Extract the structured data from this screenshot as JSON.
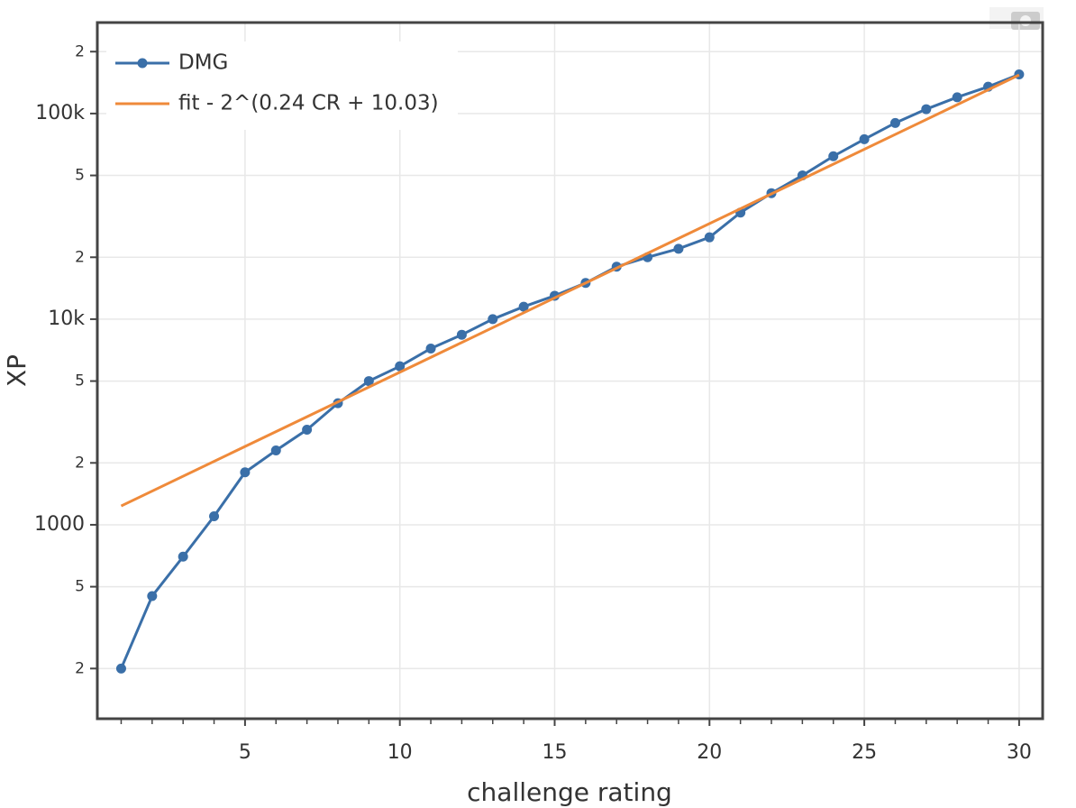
{
  "chart_data": {
    "type": "line",
    "xlabel": "challenge rating",
    "ylabel": "XP",
    "log_y": true,
    "grid": true,
    "legend": "upper left",
    "xlim": [
      0.23,
      30.76
    ],
    "xticks": [
      5,
      10,
      15,
      20,
      25,
      30
    ],
    "xminorticks": [
      1,
      2,
      3,
      4,
      6,
      7,
      8,
      9,
      11,
      12,
      13,
      14,
      16,
      17,
      18,
      19,
      21,
      22,
      23,
      24,
      26,
      27,
      28,
      29
    ],
    "ylim": [
      114,
      277000
    ],
    "yticks": [
      {
        "value": 200,
        "label": "2"
      },
      {
        "value": 500,
        "label": "5"
      },
      1000,
      {
        "value": 2000,
        "label": "2"
      },
      {
        "value": 5000,
        "label": "5"
      },
      {
        "value": 10000,
        "label": "10k"
      },
      {
        "value": 20000,
        "label": "2"
      },
      {
        "value": 50000,
        "label": "5"
      },
      {
        "value": 100000,
        "label": "100k"
      },
      {
        "value": 200000,
        "label": "2"
      }
    ],
    "series": [
      {
        "name": "DMG",
        "color": "#3a6fa8",
        "markers": true,
        "x": [
          1,
          2,
          3,
          4,
          5,
          6,
          7,
          8,
          9,
          10,
          11,
          12,
          13,
          14,
          15,
          16,
          17,
          18,
          19,
          20,
          21,
          22,
          23,
          24,
          25,
          26,
          27,
          28,
          29,
          30
        ],
        "values": [
          200,
          450,
          700,
          1100,
          1800,
          2300,
          2900,
          3900,
          5000,
          5900,
          7200,
          8400,
          10000,
          11500,
          13000,
          15000,
          18000,
          20000,
          22000,
          25000,
          33000,
          41000,
          50000,
          62000,
          75000,
          90000,
          105000,
          120000,
          135000,
          155000
        ]
      },
      {
        "name": "fit - 2^(0.24 CR + 10.03)",
        "color": "#ef8a3a",
        "markers": false,
        "x": [
          1,
          30
        ],
        "values": [
          1235,
          154000
        ]
      }
    ]
  }
}
